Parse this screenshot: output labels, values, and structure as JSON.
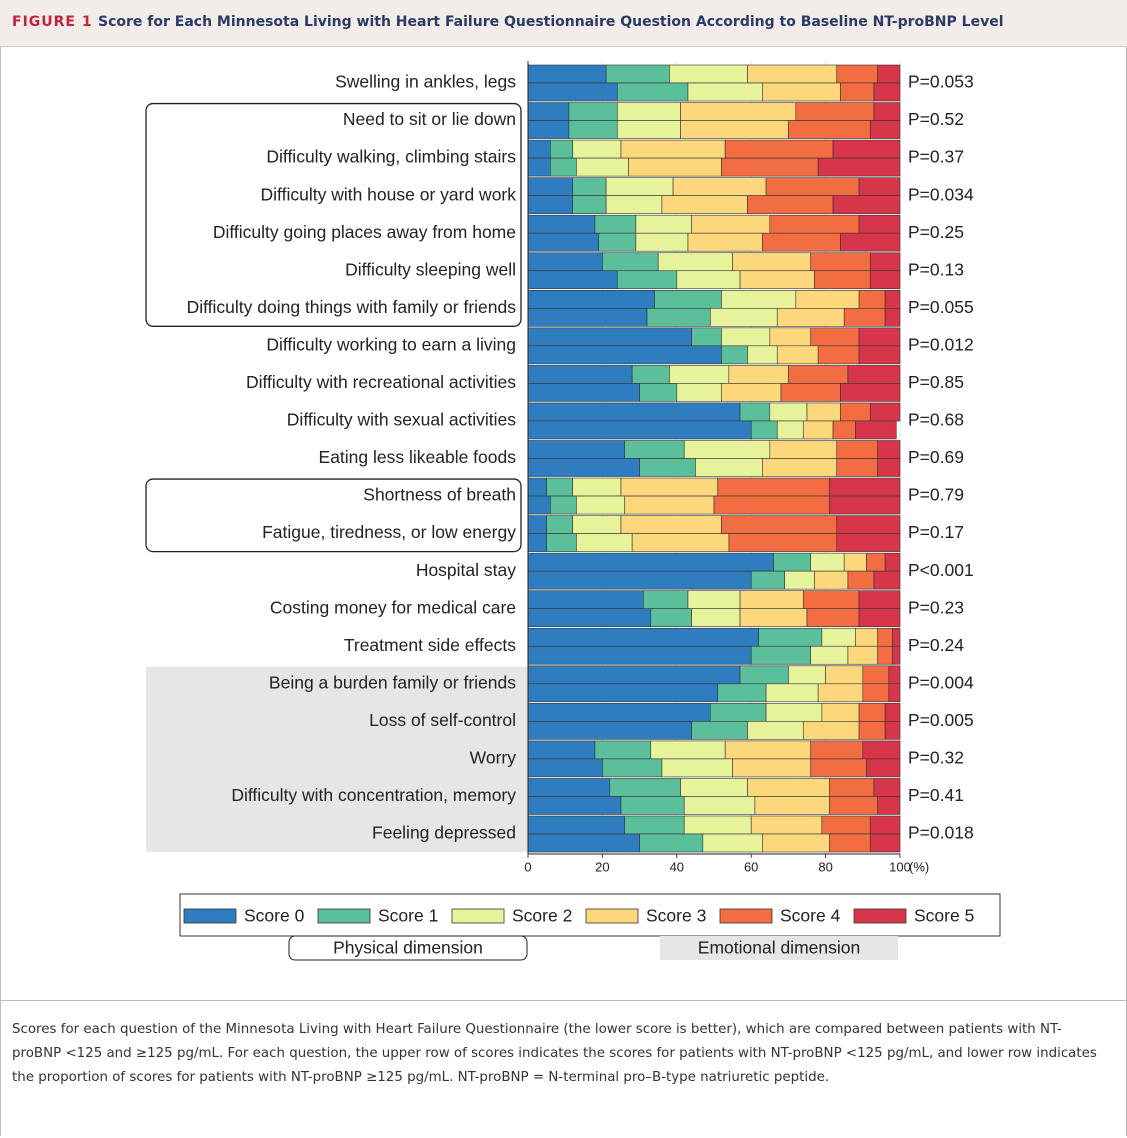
{
  "figure_label": "FIGURE 1",
  "chart_data": {
    "type": "stacked-bar-pairs",
    "title": "Score for Each Minnesota Living with Heart Failure Questionnaire Question According to Baseline NT-proBNP Level",
    "categories": [
      "Swelling in ankles, legs",
      "Need to sit or lie down",
      "Difficulty walking, climbing stairs",
      "Difficulty with house or yard work",
      "Difficulty going places away from home",
      "Difficulty sleeping well",
      "Difficulty doing things with family or friends",
      "Difficulty working to earn a living",
      "Difficulty with recreational activities",
      "Difficulty with sexual activities",
      "Eating less likeable foods",
      "Shortness of breath",
      "Fatigue, tiredness, or low energy",
      "Hospital stay",
      "Costing money for medical care",
      "Treatment side effects",
      "Being a burden family or friends",
      "Loss of self-control",
      "Worry",
      "Difficulty with concentration, memory",
      "Feeling depressed"
    ],
    "p_values": [
      "P=0.053",
      "P=0.52",
      "P=0.37",
      "P=0.034",
      "P=0.25",
      "P=0.13",
      "P=0.055",
      "P=0.012",
      "P=0.85",
      "P=0.68",
      "P=0.69",
      "P=0.79",
      "P=0.17",
      "P<0.001",
      "P=0.23",
      "P=0.24",
      "P=0.004",
      "P=0.005",
      "P=0.32",
      "P=0.41",
      "P=0.018"
    ],
    "series": [
      {
        "name": "Score 0",
        "color": "#2f7dbf",
        "values": [
          [
            21,
            24
          ],
          [
            11,
            11
          ],
          [
            6,
            6
          ],
          [
            12,
            12
          ],
          [
            18,
            19
          ],
          [
            20,
            24
          ],
          [
            34,
            32
          ],
          [
            44,
            52
          ],
          [
            28,
            30
          ],
          [
            57,
            60
          ],
          [
            26,
            30
          ],
          [
            5,
            6
          ],
          [
            5,
            5
          ],
          [
            66,
            60
          ],
          [
            31,
            33
          ],
          [
            62,
            60
          ],
          [
            57,
            51
          ],
          [
            49,
            44
          ],
          [
            18,
            20
          ],
          [
            22,
            25
          ],
          [
            26,
            30
          ]
        ]
      },
      {
        "name": "Score 1",
        "color": "#5cbf9b",
        "values": [
          [
            17,
            19
          ],
          [
            13,
            13
          ],
          [
            6,
            7
          ],
          [
            9,
            9
          ],
          [
            11,
            10
          ],
          [
            15,
            16
          ],
          [
            18,
            17
          ],
          [
            8,
            7
          ],
          [
            10,
            10
          ],
          [
            8,
            7
          ],
          [
            16,
            15
          ],
          [
            7,
            7
          ],
          [
            7,
            8
          ],
          [
            10,
            9
          ],
          [
            12,
            11
          ],
          [
            17,
            16
          ],
          [
            13,
            13
          ],
          [
            15,
            15
          ],
          [
            15,
            16
          ],
          [
            19,
            17
          ],
          [
            16,
            17
          ]
        ]
      },
      {
        "name": "Score 2",
        "color": "#e6f39b",
        "values": [
          [
            21,
            20
          ],
          [
            17,
            17
          ],
          [
            13,
            14
          ],
          [
            18,
            15
          ],
          [
            15,
            14
          ],
          [
            20,
            17
          ],
          [
            20,
            18
          ],
          [
            13,
            8
          ],
          [
            16,
            12
          ],
          [
            10,
            7
          ],
          [
            23,
            18
          ],
          [
            13,
            13
          ],
          [
            13,
            15
          ],
          [
            9,
            8
          ],
          [
            14,
            13
          ],
          [
            9,
            10
          ],
          [
            10,
            14
          ],
          [
            15,
            15
          ],
          [
            20,
            19
          ],
          [
            18,
            19
          ],
          [
            18,
            16
          ]
        ]
      },
      {
        "name": "Score 3",
        "color": "#fdd77b",
        "values": [
          [
            24,
            21
          ],
          [
            31,
            29
          ],
          [
            28,
            25
          ],
          [
            25,
            23
          ],
          [
            21,
            20
          ],
          [
            21,
            20
          ],
          [
            17,
            18
          ],
          [
            11,
            11
          ],
          [
            16,
            16
          ],
          [
            9,
            8
          ],
          [
            18,
            20
          ],
          [
            26,
            24
          ],
          [
            27,
            26
          ],
          [
            6,
            9
          ],
          [
            17,
            18
          ],
          [
            6,
            8
          ],
          [
            10,
            12
          ],
          [
            10,
            15
          ],
          [
            23,
            21
          ],
          [
            22,
            20
          ],
          [
            19,
            18
          ]
        ]
      },
      {
        "name": "Score 4",
        "color": "#f36d43",
        "values": [
          [
            11,
            9
          ],
          [
            21,
            22
          ],
          [
            29,
            26
          ],
          [
            25,
            23
          ],
          [
            24,
            21
          ],
          [
            16,
            15
          ],
          [
            7,
            11
          ],
          [
            13,
            11
          ],
          [
            16,
            16
          ],
          [
            8,
            6
          ],
          [
            11,
            11
          ],
          [
            30,
            31
          ],
          [
            31,
            29
          ],
          [
            5,
            7
          ],
          [
            15,
            14
          ],
          [
            4,
            4
          ],
          [
            7,
            7
          ],
          [
            7,
            7
          ],
          [
            14,
            15
          ],
          [
            12,
            13
          ],
          [
            13,
            11
          ]
        ]
      },
      {
        "name": "Score 5",
        "color": "#d6354a",
        "values": [
          [
            6,
            7
          ],
          [
            7,
            8
          ],
          [
            18,
            22
          ],
          [
            11,
            18
          ],
          [
            11,
            16
          ],
          [
            8,
            8
          ],
          [
            4,
            4
          ],
          [
            11,
            11
          ],
          [
            14,
            16
          ],
          [
            8,
            11
          ],
          [
            6,
            6
          ],
          [
            19,
            19
          ],
          [
            17,
            17
          ],
          [
            4,
            7
          ],
          [
            11,
            11
          ],
          [
            2,
            2
          ],
          [
            3,
            3
          ],
          [
            4,
            4
          ],
          [
            10,
            9
          ],
          [
            7,
            6
          ],
          [
            8,
            8
          ]
        ]
      }
    ],
    "xlim": [
      0,
      100
    ],
    "xticks": [
      0,
      20,
      40,
      60,
      80,
      100
    ],
    "x_unit": "(%)",
    "grid": true,
    "dimensions": [
      {
        "label": "Physical dimension",
        "style": "outline",
        "rows": [
          [
            1,
            6
          ],
          [
            11,
            12
          ]
        ]
      },
      {
        "label": "Emotional dimension",
        "style": "shaded",
        "rows": [
          [
            16,
            20
          ]
        ]
      }
    ]
  },
  "caption": "Scores for each question of the Minnesota Living with Heart Failure Questionnaire (the lower score is better), which are compared between patients with NT-proBNP <125 and ≥125 pg/mL. For each question, the upper row of scores indicates the scores for patients with NT-proBNP <125 pg/mL, and lower row indicates the proportion of scores for patients with NT-proBNP ≥125 pg/mL. NT-proBNP = N-terminal pro–B-type natriuretic peptide."
}
